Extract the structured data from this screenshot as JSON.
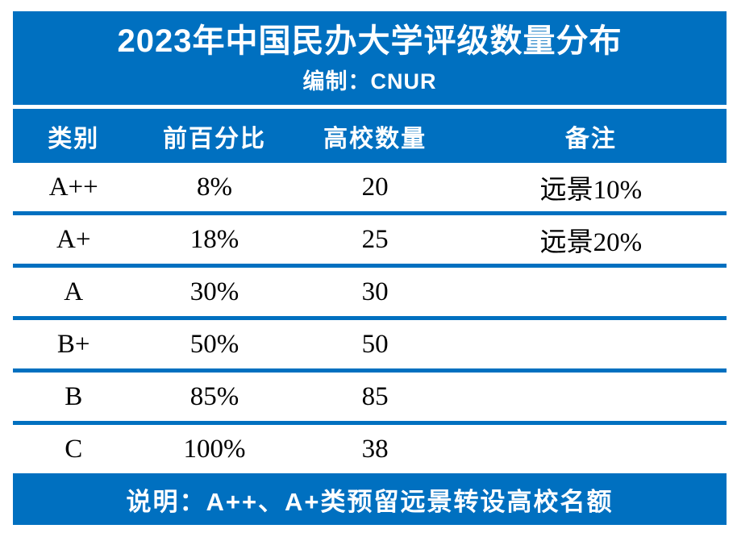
{
  "chart_data": {
    "type": "table",
    "title": "2023年中国民办大学评级数量分布",
    "subtitle": "编制：CNUR",
    "columns": [
      "类别",
      "前百分比",
      "高校数量",
      "备注"
    ],
    "rows": [
      [
        "A++",
        "8%",
        "20",
        "远景10%"
      ],
      [
        "A+",
        "18%",
        "25",
        "远景20%"
      ],
      [
        "A",
        "30%",
        "30",
        ""
      ],
      [
        "B+",
        "50%",
        "50",
        ""
      ],
      [
        "B",
        "85%",
        "85",
        ""
      ],
      [
        "C",
        "100%",
        "38",
        ""
      ]
    ],
    "footer_note": "说明：A++、A+类预留远景转设高校名额",
    "accent_color": "#0070C0",
    "text_color": "#000000",
    "background_color": "#FFFFFF"
  }
}
